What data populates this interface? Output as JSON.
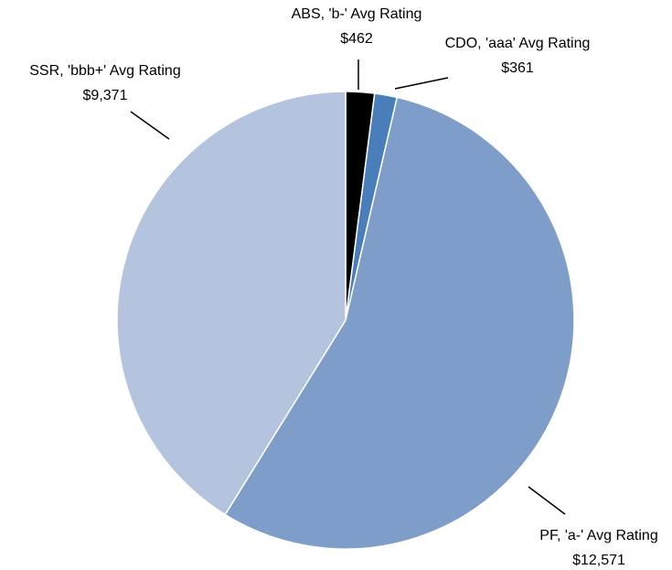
{
  "chart_data": {
    "type": "pie",
    "categories": [
      "ABS, 'b-' Avg Rating",
      "CDO, 'aaa' Avg Rating",
      "PF, 'a-' Avg Rating",
      "SSR, 'bbb+' Avg Rating"
    ],
    "values": [
      462,
      361,
      12571,
      9371
    ],
    "value_labels": [
      "$462",
      "$361",
      "$12,571",
      "$9,371"
    ],
    "colors": [
      "#000000",
      "#4a7ebb",
      "#7f9dc9",
      "#b4c3de"
    ]
  }
}
